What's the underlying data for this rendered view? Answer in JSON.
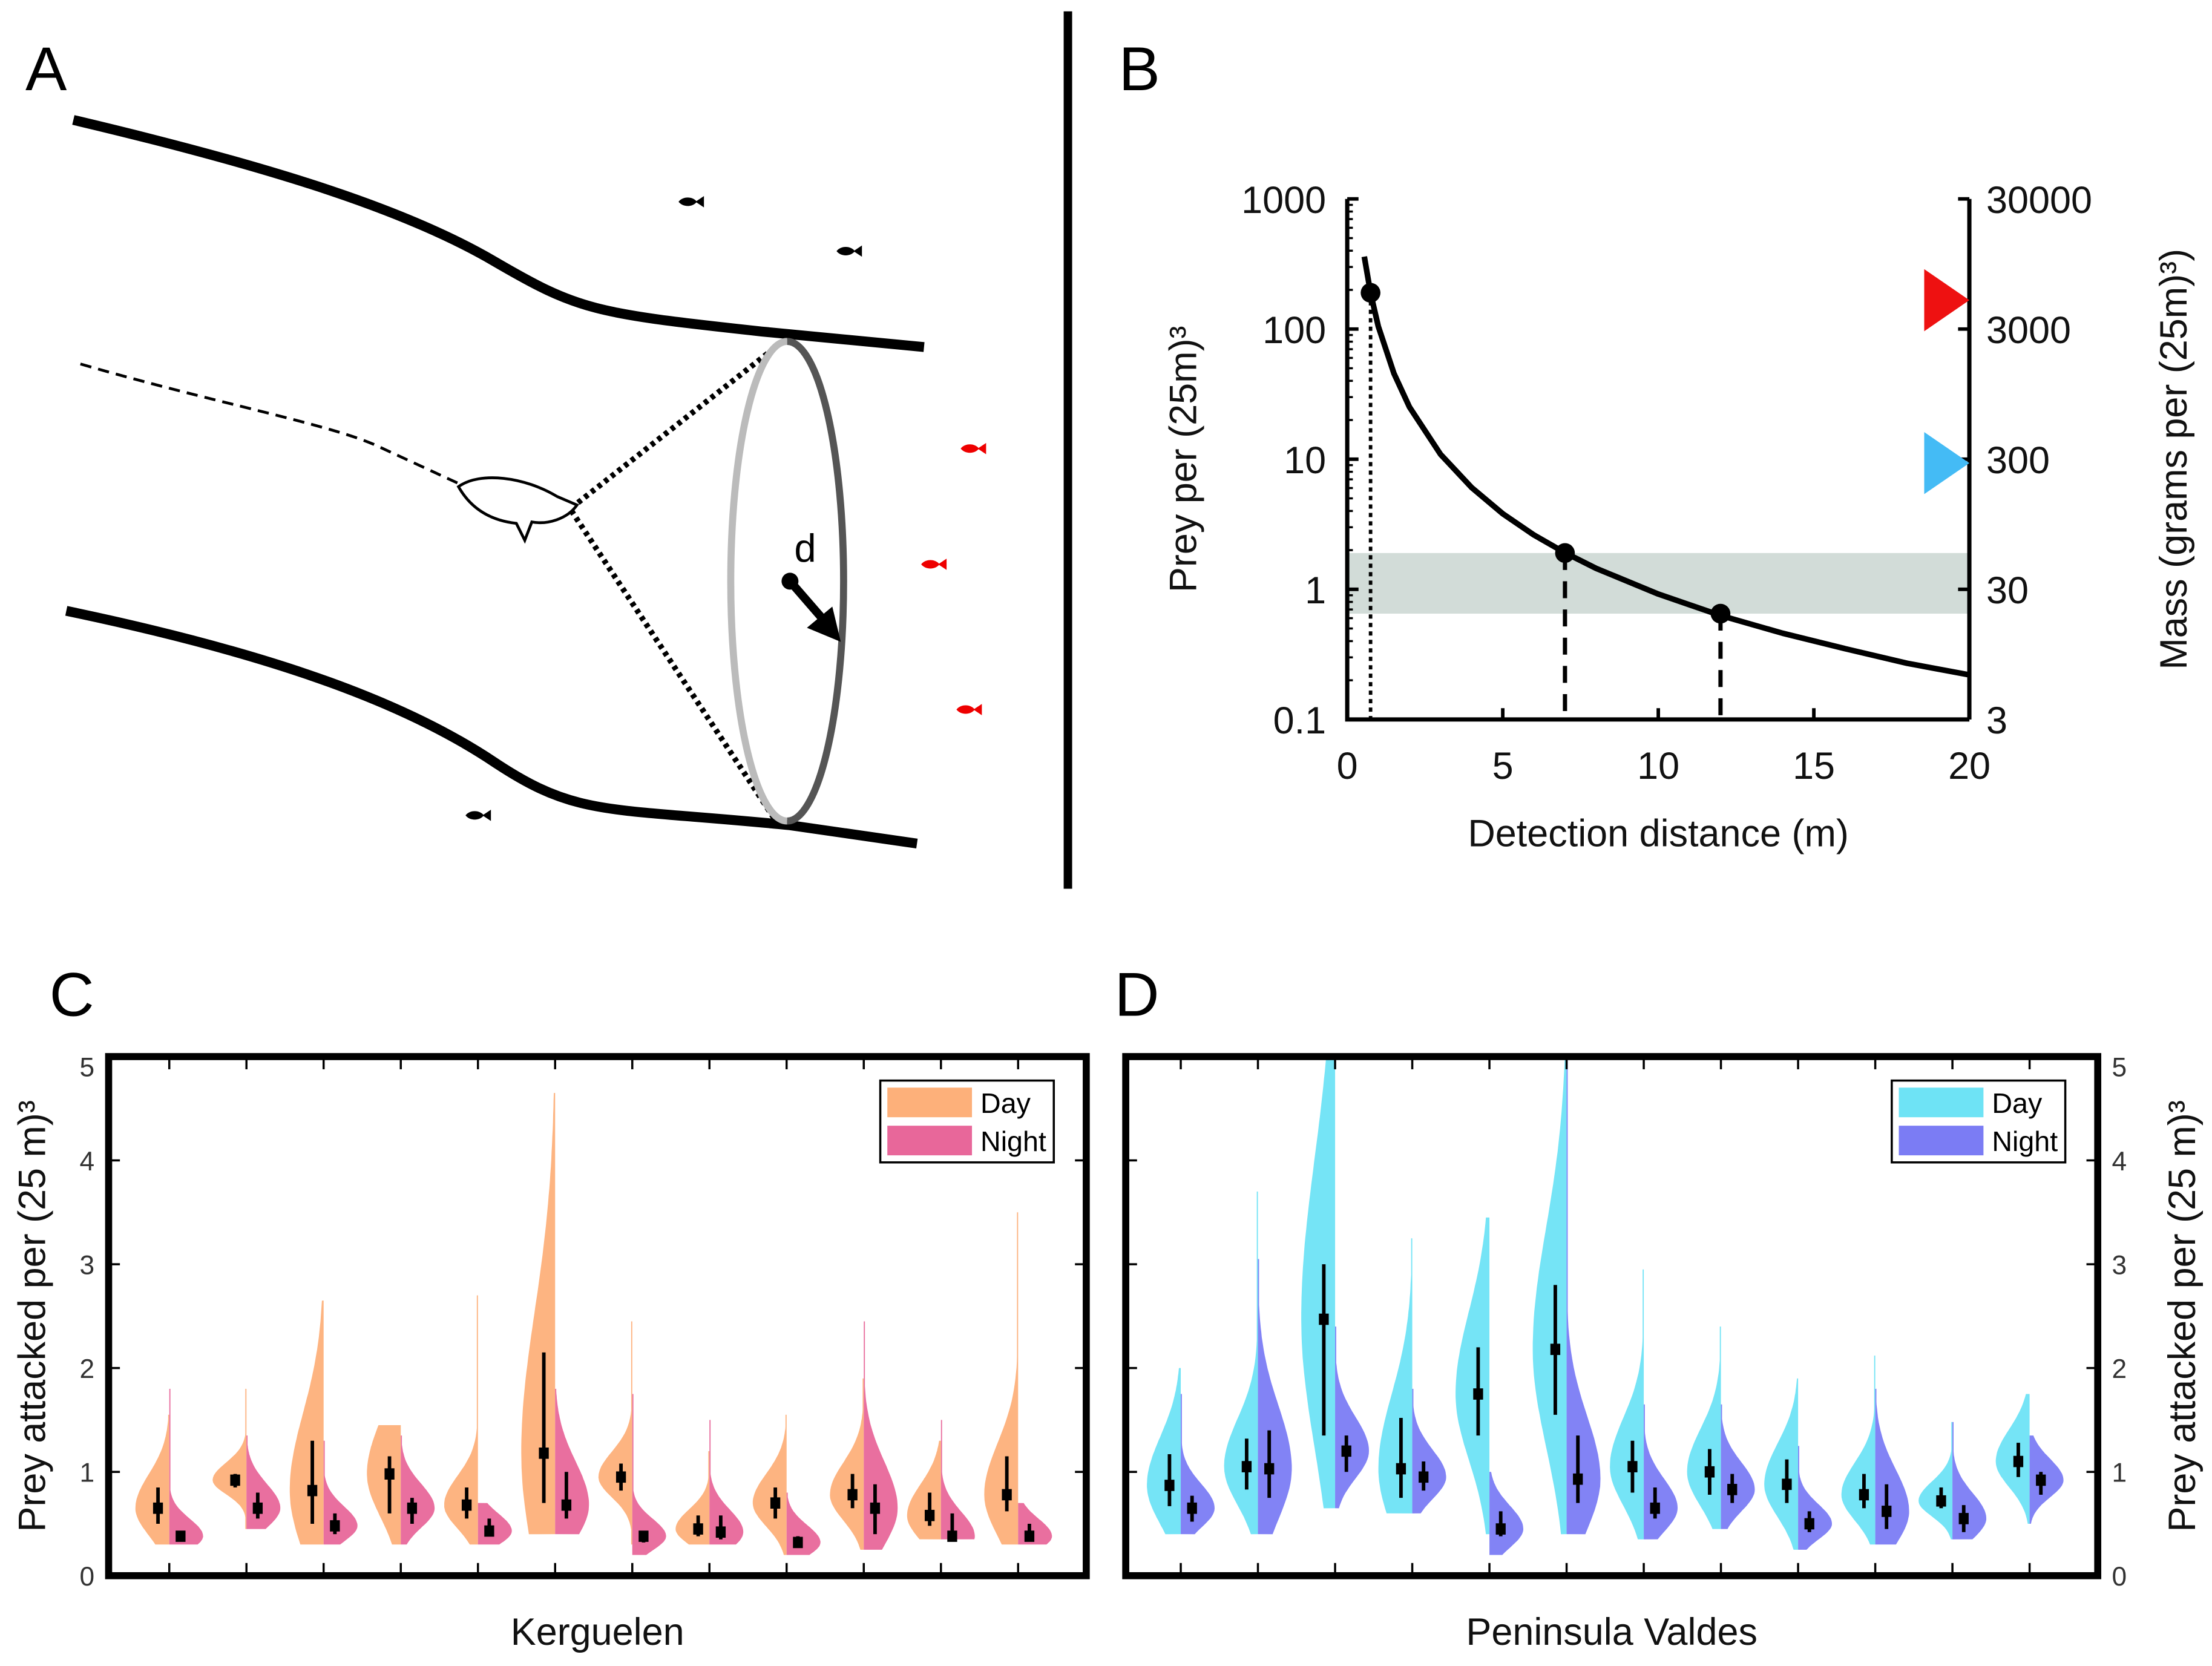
{
  "panel_labels": {
    "a": "A",
    "b": "B",
    "c": "C",
    "d": "D"
  },
  "panel_a": {
    "distance_label": "d"
  },
  "chart_data": [
    {
      "id": "B",
      "type": "line",
      "title": "",
      "xlabel": "Detection distance (m)",
      "ylabel": "Prey per (25m)³",
      "ylabel_right": "Mass (grams per (25m)³)",
      "xlim": [
        0,
        20
      ],
      "ylim": [
        0.1,
        1000
      ],
      "yscale": "log",
      "ylim_right": [
        3,
        30000
      ],
      "xticks": [
        {
          "value": 0,
          "label": "0"
        },
        {
          "value": 5,
          "label": "5"
        },
        {
          "value": 10,
          "label": "10"
        },
        {
          "value": 15,
          "label": "15"
        },
        {
          "value": 20,
          "label": "20"
        }
      ],
      "yticks": [
        {
          "value": 0.1,
          "label": "0.1"
        },
        {
          "value": 1,
          "label": "1"
        },
        {
          "value": 10,
          "label": "10"
        },
        {
          "value": 100,
          "label": "100"
        },
        {
          "value": 1000,
          "label": "1000"
        }
      ],
      "yticks_right": [
        {
          "value": 3,
          "label": "3"
        },
        {
          "value": 30,
          "label": "30"
        },
        {
          "value": 300,
          "label": "300"
        },
        {
          "value": 3000,
          "label": "3000"
        },
        {
          "value": 30000,
          "label": "30000"
        }
      ],
      "curve": {
        "x": [
          0.55,
          0.75,
          1,
          1.5,
          2,
          3,
          4,
          5,
          6,
          7,
          8,
          10,
          12,
          14,
          16,
          18,
          20
        ],
        "y": [
          360,
          190,
          105,
          45.6,
          25.2,
          10.9,
          6.05,
          3.81,
          2.62,
          1.91,
          1.45,
          0.92,
          0.63,
          0.46,
          0.35,
          0.27,
          0.22
        ]
      },
      "points": [
        {
          "x": 0.75,
          "y": 190
        },
        {
          "x": 7,
          "y": 1.9
        },
        {
          "x": 12,
          "y": 0.65
        }
      ],
      "reference_lines": [
        {
          "x": 0.75,
          "style": "dotted"
        },
        {
          "x": 7,
          "style": "dashed"
        },
        {
          "x": 12,
          "style": "dashed"
        }
      ],
      "band": {
        "y_low": 0.65,
        "y_high": 1.9,
        "color": "#D2DCD8"
      },
      "markers_right_axis": [
        {
          "mass": 5000,
          "color": "#EE1111"
        },
        {
          "mass": 280,
          "color": "#44BBF5"
        }
      ]
    },
    {
      "id": "C",
      "type": "violin",
      "xlabel": "Kerguelen",
      "ylabel": "Prey attacked per (25 m)³",
      "ylim": [
        0,
        5
      ],
      "yaxis_side": "left",
      "yticks": [
        {
          "value": 0,
          "label": "0"
        },
        {
          "value": 1,
          "label": "1"
        },
        {
          "value": 2,
          "label": "2"
        },
        {
          "value": 3,
          "label": "3"
        },
        {
          "value": 4,
          "label": "4"
        },
        {
          "value": 5,
          "label": "5"
        }
      ],
      "legend": [
        {
          "label": "Day",
          "color": "#FDB07A"
        },
        {
          "label": "Night",
          "color": "#E8679A"
        }
      ],
      "legend_position": "top-right",
      "stats_fields": [
        "median",
        "whisker_low",
        "whisker_high",
        "min",
        "max"
      ],
      "groups": [
        {
          "day": [
            0.65,
            0.5,
            0.85,
            0.3,
            1.55
          ],
          "night": [
            0.38,
            0.35,
            0.42,
            0.3,
            1.8
          ]
        },
        {
          "day": [
            0.92,
            0.85,
            0.98,
            0.45,
            1.8
          ],
          "night": [
            0.65,
            0.55,
            0.8,
            0.45,
            1.35
          ]
        },
        {
          "day": [
            0.82,
            0.5,
            1.3,
            0.3,
            2.65
          ],
          "night": [
            0.48,
            0.4,
            0.6,
            0.3,
            1.3
          ]
        },
        {
          "day": [
            0.98,
            0.6,
            1.15,
            0.3,
            1.45
          ],
          "night": [
            0.65,
            0.5,
            0.75,
            0.3,
            1.35
          ]
        },
        {
          "day": [
            0.68,
            0.55,
            0.85,
            0.3,
            2.7
          ],
          "night": [
            0.43,
            0.38,
            0.55,
            0.3,
            0.7
          ]
        },
        {
          "day": [
            1.18,
            0.7,
            2.15,
            0.4,
            4.65
          ],
          "night": [
            0.68,
            0.55,
            1.0,
            0.4,
            1.8
          ]
        },
        {
          "day": [
            0.95,
            0.82,
            1.08,
            0.3,
            2.45
          ],
          "night": [
            0.38,
            0.32,
            0.42,
            0.2,
            1.75
          ]
        },
        {
          "day": [
            0.45,
            0.38,
            0.58,
            0.3,
            1.2
          ],
          "night": [
            0.42,
            0.35,
            0.58,
            0.3,
            1.5
          ]
        },
        {
          "day": [
            0.7,
            0.55,
            0.85,
            0.2,
            1.55
          ],
          "night": [
            0.32,
            0.28,
            0.38,
            0.2,
            0.8
          ]
        },
        {
          "day": [
            0.78,
            0.65,
            0.98,
            0.25,
            1.9
          ],
          "night": [
            0.65,
            0.4,
            0.88,
            0.25,
            2.45
          ]
        },
        {
          "day": [
            0.58,
            0.48,
            0.8,
            0.35,
            1.3
          ],
          "night": [
            0.38,
            0.35,
            0.6,
            0.35,
            1.5
          ]
        },
        {
          "day": [
            0.78,
            0.62,
            1.15,
            0.3,
            3.5
          ],
          "night": [
            0.38,
            0.33,
            0.5,
            0.3,
            0.7
          ]
        }
      ]
    },
    {
      "id": "D",
      "type": "violin",
      "xlabel": "Peninsula Valdes",
      "ylabel": "Prey attacked per (25 m)³",
      "ylim": [
        0,
        5
      ],
      "yaxis_side": "right",
      "yticks": [
        {
          "value": 0,
          "label": "0"
        },
        {
          "value": 1,
          "label": "1"
        },
        {
          "value": 2,
          "label": "2"
        },
        {
          "value": 3,
          "label": "3"
        },
        {
          "value": 4,
          "label": "4"
        },
        {
          "value": 5,
          "label": "5"
        }
      ],
      "legend": [
        {
          "label": "Day",
          "color": "#6EE3F5"
        },
        {
          "label": "Night",
          "color": "#7B7CF4"
        }
      ],
      "legend_position": "top-right",
      "stats_fields": [
        "median",
        "whisker_low",
        "whisker_high",
        "min",
        "max"
      ],
      "groups": [
        {
          "day": [
            0.87,
            0.67,
            1.17,
            0.4,
            2.0
          ],
          "night": [
            0.65,
            0.52,
            0.77,
            0.4,
            1.75
          ]
        },
        {
          "day": [
            1.05,
            0.83,
            1.32,
            0.4,
            3.7
          ],
          "night": [
            1.03,
            0.75,
            1.4,
            0.4,
            3.05
          ]
        },
        {
          "day": [
            2.47,
            1.35,
            3.0,
            0.65,
            5.0
          ],
          "night": [
            1.2,
            1.0,
            1.35,
            0.65,
            2.4
          ]
        },
        {
          "day": [
            1.03,
            0.75,
            1.52,
            0.6,
            3.25
          ],
          "night": [
            0.95,
            0.82,
            1.1,
            0.6,
            1.8
          ]
        },
        {
          "day": [
            1.75,
            1.35,
            2.2,
            0.4,
            3.45
          ],
          "night": [
            0.45,
            0.38,
            0.62,
            0.2,
            1.0
          ]
        },
        {
          "day": [
            2.18,
            1.55,
            2.8,
            0.4,
            5.0
          ],
          "night": [
            0.93,
            0.7,
            1.35,
            0.4,
            5.0
          ]
        },
        {
          "day": [
            1.05,
            0.8,
            1.3,
            0.35,
            2.95
          ],
          "night": [
            0.65,
            0.55,
            0.85,
            0.35,
            1.65
          ]
        },
        {
          "day": [
            1.0,
            0.78,
            1.22,
            0.45,
            2.4
          ],
          "night": [
            0.83,
            0.7,
            0.98,
            0.45,
            1.65
          ]
        },
        {
          "day": [
            0.88,
            0.7,
            1.12,
            0.25,
            1.9
          ],
          "night": [
            0.5,
            0.42,
            0.62,
            0.25,
            1.25
          ]
        },
        {
          "day": [
            0.78,
            0.65,
            0.98,
            0.3,
            2.12
          ],
          "night": [
            0.62,
            0.45,
            0.88,
            0.3,
            1.8
          ]
        },
        {
          "day": [
            0.72,
            0.65,
            0.85,
            0.35,
            1.48
          ],
          "night": [
            0.55,
            0.42,
            0.68,
            0.35,
            1.48
          ]
        },
        {
          "day": [
            1.1,
            0.95,
            1.28,
            0.5,
            1.75
          ],
          "night": [
            0.92,
            0.78,
            1.0,
            0.5,
            1.35
          ]
        }
      ]
    }
  ]
}
